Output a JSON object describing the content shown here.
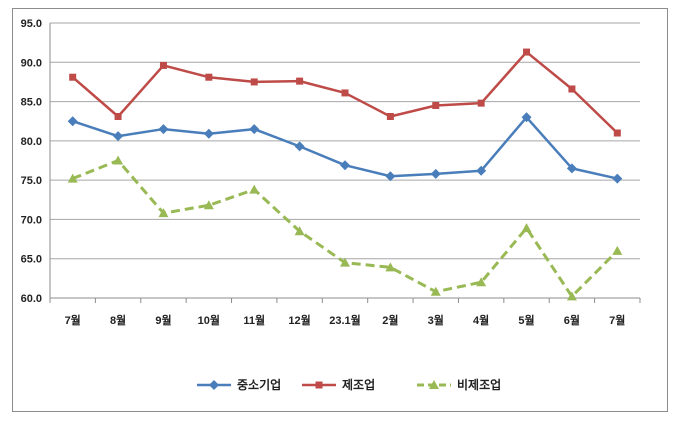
{
  "chart_data": {
    "type": "line",
    "categories": [
      "7월",
      "8월",
      "9월",
      "10월",
      "11월",
      "12월",
      "23.1월",
      "2월",
      "3월",
      "4월",
      "5월",
      "6월",
      "7월"
    ],
    "ylim": [
      60.0,
      95.0
    ],
    "yticks": [
      "95.0",
      "90.0",
      "85.0",
      "80.0",
      "75.0",
      "70.0",
      "65.0",
      "60.0"
    ],
    "ytick_values": [
      95,
      90,
      85,
      80,
      75,
      70,
      65,
      60
    ],
    "grid": "horizontal",
    "legend_position": "bottom",
    "series": [
      {
        "name": "중소기업",
        "color": "#4a7ebb",
        "marker": "diamond",
        "dash": "solid",
        "values": [
          82.5,
          80.6,
          81.5,
          80.9,
          81.5,
          79.3,
          76.9,
          75.5,
          75.8,
          76.2,
          83.0,
          76.5,
          75.2
        ]
      },
      {
        "name": "제조업",
        "color": "#be4b48",
        "marker": "square",
        "dash": "solid",
        "values": [
          88.1,
          83.1,
          89.6,
          88.1,
          87.5,
          87.6,
          86.1,
          83.1,
          84.5,
          84.8,
          91.3,
          86.6,
          81.0
        ]
      },
      {
        "name": "비제조업",
        "color": "#98b954",
        "marker": "triangle",
        "dash": "dashed",
        "values": [
          75.2,
          77.5,
          70.8,
          71.8,
          73.8,
          68.5,
          64.5,
          63.9,
          60.8,
          62.0,
          68.9,
          60.2,
          66.0
        ]
      }
    ]
  }
}
